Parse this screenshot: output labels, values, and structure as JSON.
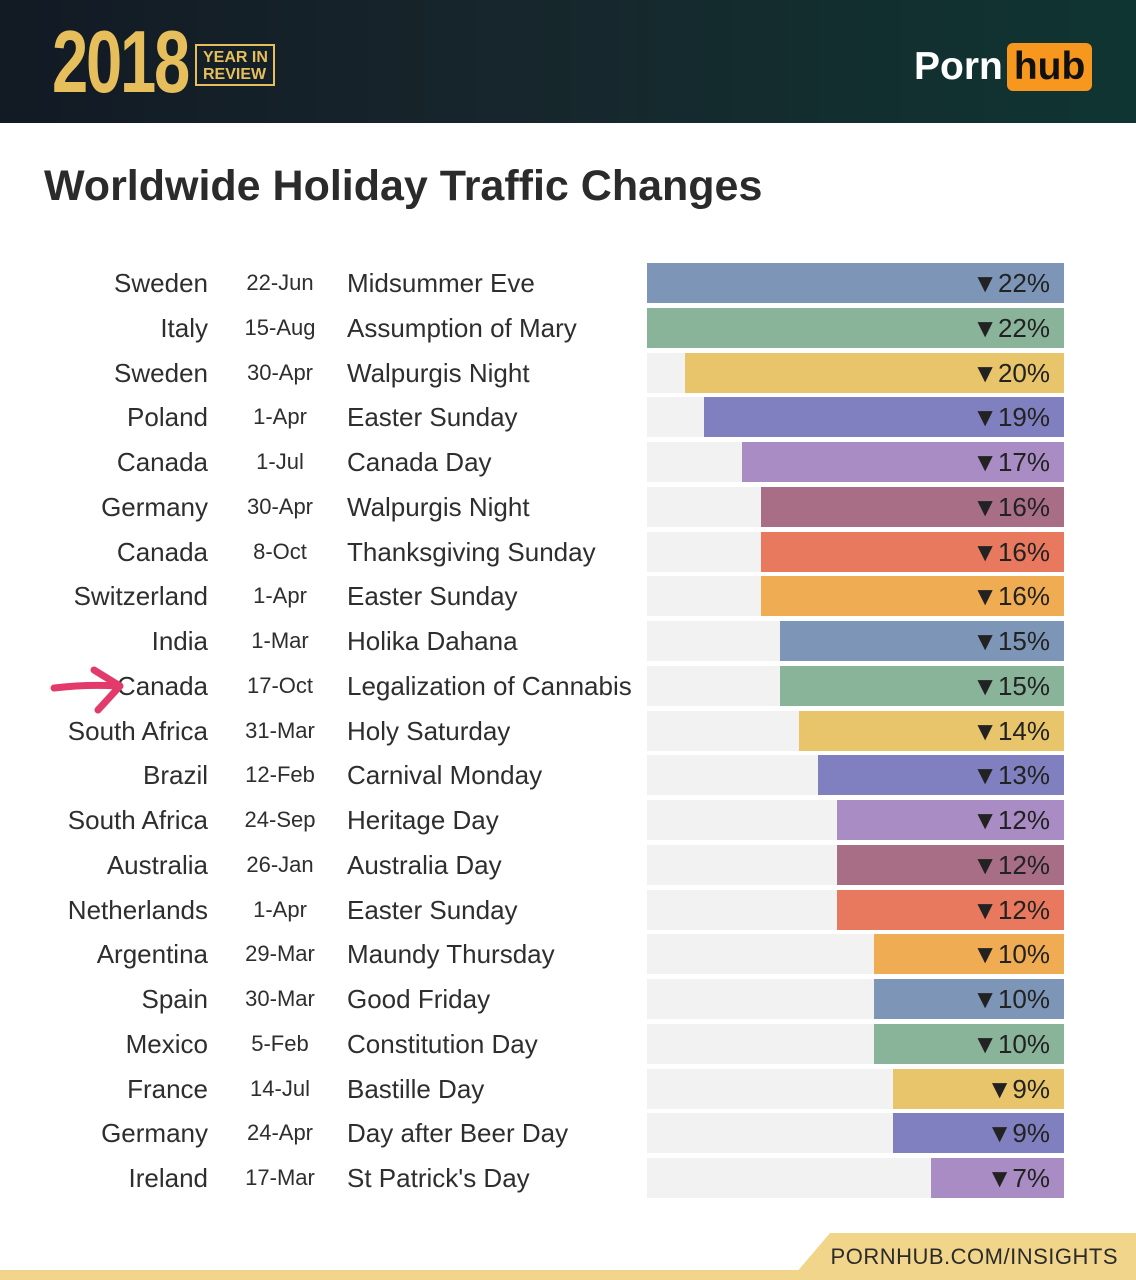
{
  "header": {
    "year": "2018",
    "year_in_review": "YEAR IN\nREVIEW",
    "brand_left": "Porn",
    "brand_right": "hub"
  },
  "title": "Worldwide Holiday Traffic Changes",
  "footer": "PORNHUB.COM/INSIGHTS",
  "colors": {
    "slate_blue": "#7d96b8",
    "sage_green": "#8ab49a",
    "gold": "#e8c46b",
    "periwinkle": "#8080c0",
    "lavender": "#a88cc3",
    "mauve": "#a86e85",
    "salmon": "#e8795e",
    "orange": "#f0ac52",
    "annotation_arrow": "#e23a6b",
    "footer_band": "#f1d58a"
  },
  "chart_data": {
    "type": "bar",
    "orientation": "horizontal",
    "title": "Worldwide Holiday Traffic Changes",
    "xlim": [
      0,
      22
    ],
    "direction": "decrease",
    "rows": [
      {
        "country": "Sweden",
        "date": "22-Jun",
        "holiday": "Midsummer Eve",
        "value": 22,
        "label": "▼22%",
        "color": "#7d96b8"
      },
      {
        "country": "Italy",
        "date": "15-Aug",
        "holiday": "Assumption of Mary",
        "value": 22,
        "label": "▼22%",
        "color": "#8ab49a"
      },
      {
        "country": "Sweden",
        "date": "30-Apr",
        "holiday": "Walpurgis Night",
        "value": 20,
        "label": "▼20%",
        "color": "#e8c46b"
      },
      {
        "country": "Poland",
        "date": "1-Apr",
        "holiday": "Easter Sunday",
        "value": 19,
        "label": "▼19%",
        "color": "#8080c0"
      },
      {
        "country": "Canada",
        "date": "1-Jul",
        "holiday": "Canada Day",
        "value": 17,
        "label": "▼17%",
        "color": "#a88cc3"
      },
      {
        "country": "Germany",
        "date": "30-Apr",
        "holiday": "Walpurgis Night",
        "value": 16,
        "label": "▼16%",
        "color": "#a86e85"
      },
      {
        "country": "Canada",
        "date": "8-Oct",
        "holiday": "Thanksgiving Sunday",
        "value": 16,
        "label": "▼16%",
        "color": "#e8795e"
      },
      {
        "country": "Switzerland",
        "date": "1-Apr",
        "holiday": "Easter Sunday",
        "value": 16,
        "label": "▼16%",
        "color": "#f0ac52"
      },
      {
        "country": "India",
        "date": "1-Mar",
        "holiday": "Holika Dahana",
        "value": 15,
        "label": "▼15%",
        "color": "#7d96b8"
      },
      {
        "country": "Canada",
        "date": "17-Oct",
        "holiday": "Legalization of Cannabis",
        "value": 15,
        "label": "▼15%",
        "color": "#8ab49a"
      },
      {
        "country": "South Africa",
        "date": "31-Mar",
        "holiday": "Holy Saturday",
        "value": 14,
        "label": "▼14%",
        "color": "#e8c46b"
      },
      {
        "country": "Brazil",
        "date": "12-Feb",
        "holiday": "Carnival Monday",
        "value": 13,
        "label": "▼13%",
        "color": "#8080c0"
      },
      {
        "country": "South Africa",
        "date": "24-Sep",
        "holiday": "Heritage Day",
        "value": 12,
        "label": "▼12%",
        "color": "#a88cc3"
      },
      {
        "country": "Australia",
        "date": "26-Jan",
        "holiday": "Australia Day",
        "value": 12,
        "label": "▼12%",
        "color": "#a86e85"
      },
      {
        "country": "Netherlands",
        "date": "1-Apr",
        "holiday": "Easter Sunday",
        "value": 12,
        "label": "▼12%",
        "color": "#e8795e"
      },
      {
        "country": "Argentina",
        "date": "29-Mar",
        "holiday": "Maundy Thursday",
        "value": 10,
        "label": "▼10%",
        "color": "#f0ac52"
      },
      {
        "country": "Spain",
        "date": "30-Mar",
        "holiday": "Good Friday",
        "value": 10,
        "label": "▼10%",
        "color": "#7d96b8"
      },
      {
        "country": "Mexico",
        "date": "5-Feb",
        "holiday": "Constitution Day",
        "value": 10,
        "label": "▼10%",
        "color": "#8ab49a"
      },
      {
        "country": "France",
        "date": "14-Jul",
        "holiday": "Bastille Day",
        "value": 9,
        "label": "▼9%",
        "color": "#e8c46b"
      },
      {
        "country": "Germany",
        "date": "24-Apr",
        "holiday": "Day after Beer Day",
        "value": 9,
        "label": "▼9%",
        "color": "#8080c0"
      },
      {
        "country": "Ireland",
        "date": "17-Mar",
        "holiday": "St Patrick's Day",
        "value": 7,
        "label": "▼7%",
        "color": "#a88cc3"
      }
    ]
  }
}
